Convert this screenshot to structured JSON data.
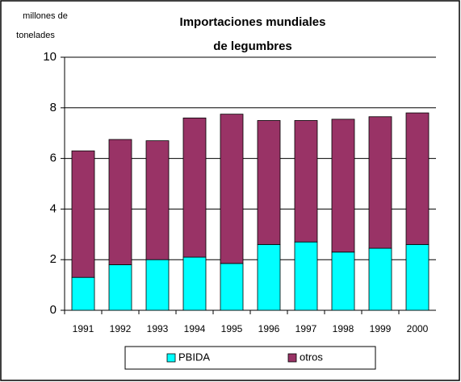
{
  "chart_data": {
    "type": "stacked_bar",
    "title": [
      "Importaciones mundiales",
      "de legumbres"
    ],
    "y_label": [
      "millones de",
      "tonelades"
    ],
    "categories": [
      "1991",
      "1992",
      "1993",
      "1994",
      "1995",
      "1996",
      "1997",
      "1998",
      "1999",
      "2000"
    ],
    "series": [
      {
        "name": "PBIDA",
        "color": "#00ffff",
        "values": [
          1.3,
          1.8,
          2.0,
          2.1,
          1.85,
          2.6,
          2.7,
          2.3,
          2.45,
          2.6
        ]
      },
      {
        "name": "otros",
        "color": "#993366",
        "values": [
          5.0,
          4.95,
          4.7,
          5.5,
          5.9,
          4.9,
          4.8,
          5.25,
          5.2,
          5.2
        ]
      }
    ],
    "ylim": [
      0,
      10
    ],
    "yticks": [
      0,
      2,
      4,
      6,
      8,
      10
    ],
    "grid": true,
    "legend": "bottom"
  }
}
